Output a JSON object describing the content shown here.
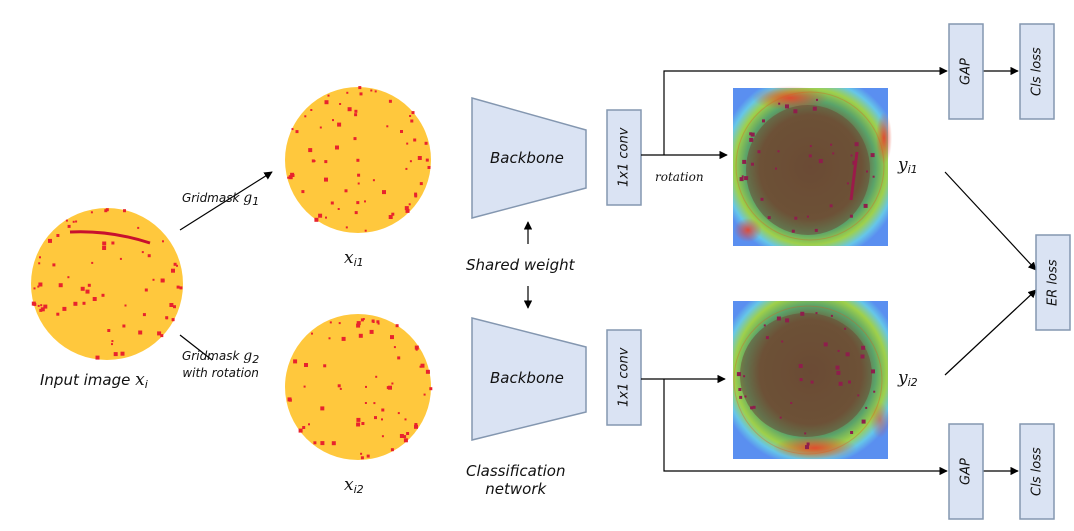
{
  "labels": {
    "input_image": "Input image",
    "gridmask1": "Gridmask",
    "gridmask2": "Gridmask",
    "with_rotation": "with rotation",
    "backbone_top": "Backbone",
    "backbone_bottom": "Backbone",
    "conv_top": "1x1 conv",
    "conv_bottom": "1x1 conv",
    "rotation": "rotation",
    "shared_weight": "Shared weight",
    "classification": "Classification",
    "network": "network",
    "gap_top": "GAP",
    "gap_bottom": "GAP",
    "cls_loss_top": "Cls loss",
    "cls_loss_bottom": "Cls loss",
    "er_loss": "ER loss"
  },
  "math": {
    "x": "x",
    "x_sub_i": "i",
    "x_sub_i1": "i1",
    "x_sub_i2": "i2",
    "y": "y",
    "y_sub_i1": "i1",
    "y_sub_i2": "i2",
    "g": "g",
    "g_sub_1": "1",
    "g_sub_2": "2"
  },
  "colors": {
    "block_fill": "#dae3f3",
    "block_stroke": "#8497b0",
    "wafer_yellow": "#ffc83d",
    "defect_red": "#e8232d"
  }
}
